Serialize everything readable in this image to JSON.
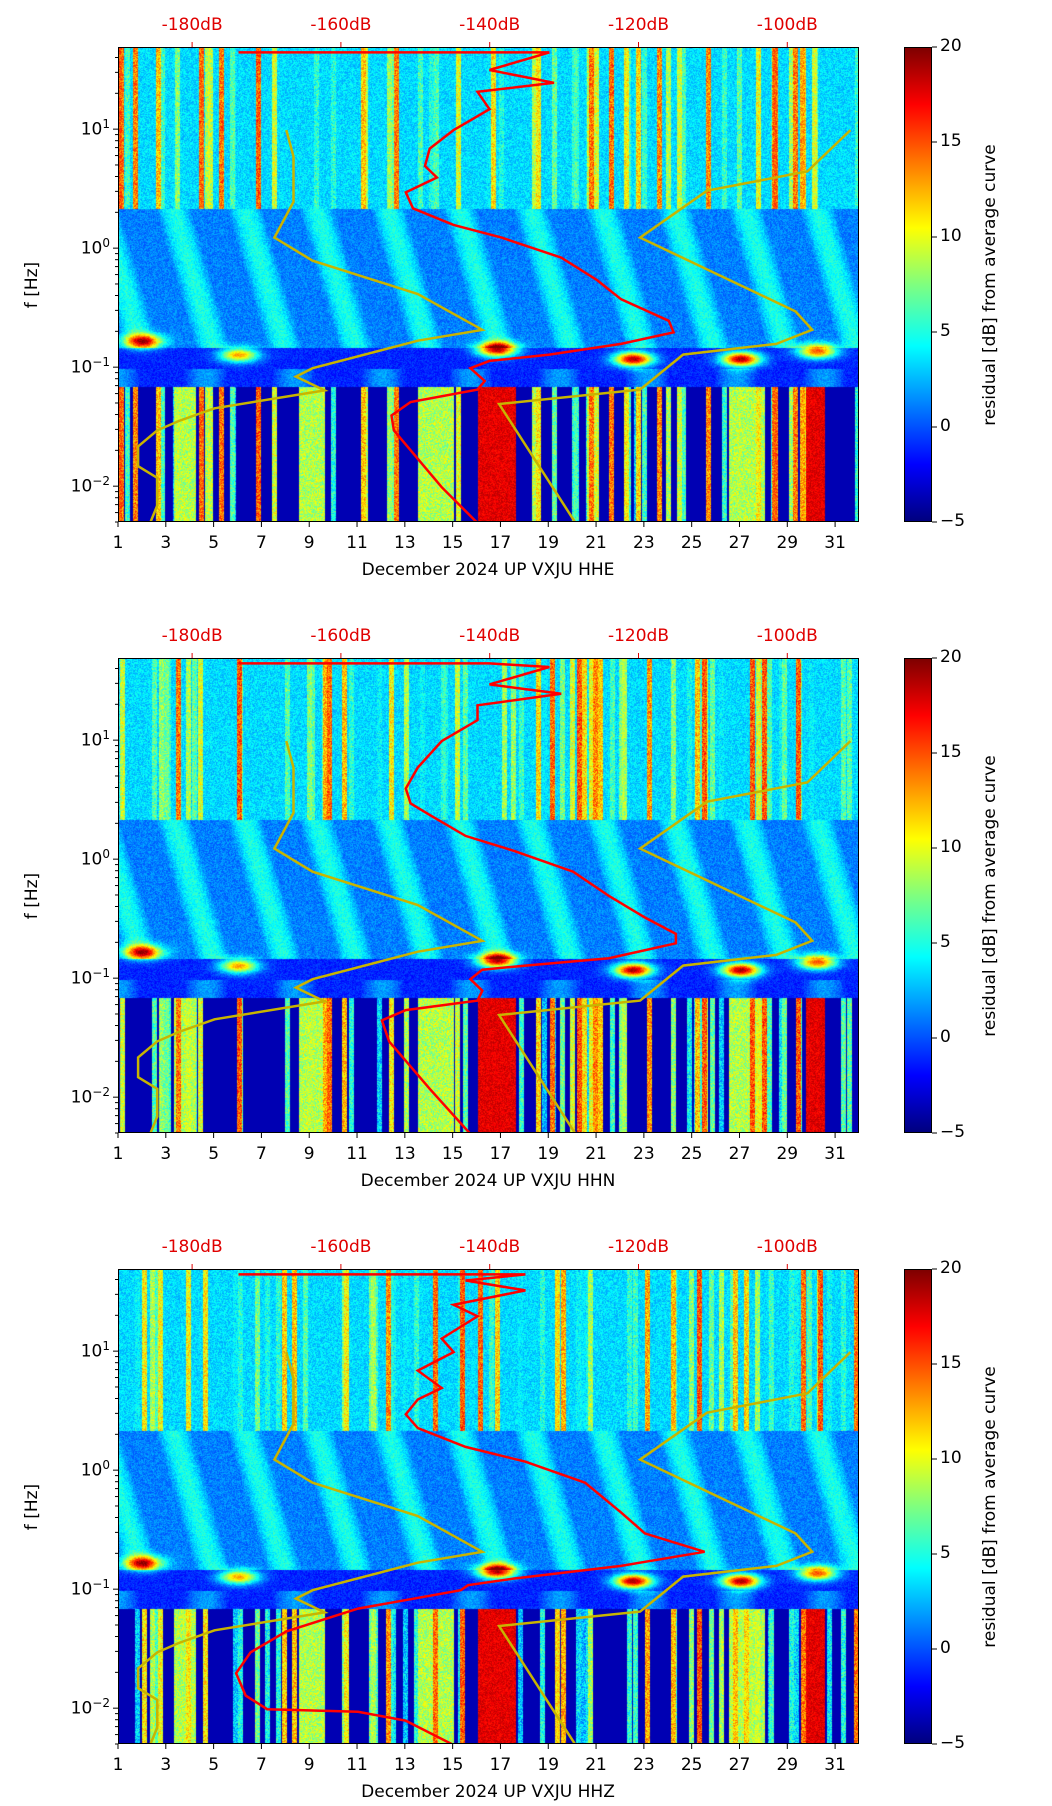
{
  "panels": [
    {
      "xlabel": "December 2024 UP VXJU  HHE",
      "channel": "HHE"
    },
    {
      "xlabel": "December 2024 UP VXJU  HHN",
      "channel": "HHN"
    },
    {
      "xlabel": "December 2024 UP VXJU  HHZ",
      "channel": "HHZ"
    }
  ],
  "axis": {
    "ylabel": "f [Hz]",
    "xticks": [
      "1",
      "3",
      "5",
      "7",
      "9",
      "11",
      "13",
      "15",
      "17",
      "19",
      "21",
      "23",
      "25",
      "27",
      "29",
      "31"
    ],
    "ytick_base": "10",
    "yticks": [
      {
        "exp": "−2",
        "value": 0.01
      },
      {
        "exp": "−1",
        "value": 0.1
      },
      {
        "exp": "0",
        "value": 1
      },
      {
        "exp": "1",
        "value": 10
      }
    ],
    "db_ticks": [
      "-180dB",
      "-160dB",
      "-140dB",
      "-120dB",
      "-100dB"
    ],
    "colorbar_label": "residual [dB] from average curve",
    "colorbar_ticks": [
      "20",
      "15",
      "10",
      "5",
      "0",
      "−5"
    ]
  },
  "chart_data": [
    {
      "type": "heatmap",
      "title": "December 2024 UP VXJU  HHE",
      "xlim": [
        1,
        32
      ],
      "ylim": [
        0.005,
        49
      ],
      "yscale": "log",
      "clim": [
        -5,
        20
      ],
      "top_axis_db": [
        -180,
        -160,
        -140,
        -120,
        -100
      ],
      "yellow_1": [
        [
          8,
          10
        ],
        [
          8.3,
          6
        ],
        [
          8.3,
          2.5
        ],
        [
          7.5,
          1.25
        ],
        [
          9.1,
          0.8
        ],
        [
          13.5,
          0.42
        ],
        [
          16.2,
          0.21
        ],
        [
          13.5,
          0.17
        ],
        [
          9.1,
          0.1
        ],
        [
          8.4,
          0.085
        ],
        [
          9.6,
          0.065
        ],
        [
          5,
          0.046
        ],
        [
          3.5,
          0.036
        ],
        [
          2.6,
          0.03
        ],
        [
          1.8,
          0.022
        ],
        [
          1.8,
          0.015
        ],
        [
          2.6,
          0.012
        ],
        [
          2.6,
          0.007
        ],
        [
          2.3,
          0.005
        ]
      ],
      "yellow_2": [
        [
          31.6,
          10
        ],
        [
          29.8,
          4.5
        ],
        [
          25.6,
          3.1
        ],
        [
          22.8,
          1.25
        ],
        [
          29.3,
          0.3
        ],
        [
          30,
          0.21
        ],
        [
          28.5,
          0.16
        ],
        [
          24.6,
          0.13
        ],
        [
          22.8,
          0.066
        ],
        [
          16.9,
          0.05
        ],
        [
          20.1,
          0.005
        ]
      ],
      "red_psd": [
        [
          6,
          45
        ],
        [
          19,
          45
        ],
        [
          16.5,
          32
        ],
        [
          19.2,
          25
        ],
        [
          16,
          21
        ],
        [
          16.5,
          15
        ],
        [
          15,
          10
        ],
        [
          14,
          7
        ],
        [
          13.8,
          5
        ],
        [
          14.3,
          4
        ],
        [
          13,
          3
        ],
        [
          13.3,
          2.2
        ],
        [
          15,
          1.6
        ],
        [
          17,
          1.25
        ],
        [
          19.5,
          0.85
        ],
        [
          21,
          0.55
        ],
        [
          22,
          0.38
        ],
        [
          24,
          0.25
        ],
        [
          24.2,
          0.2
        ],
        [
          22,
          0.16
        ],
        [
          19,
          0.13
        ],
        [
          16.5,
          0.115
        ],
        [
          15.7,
          0.1
        ],
        [
          16.3,
          0.078
        ],
        [
          16,
          0.066
        ],
        [
          13.2,
          0.052
        ],
        [
          12.4,
          0.04
        ],
        [
          12.5,
          0.03
        ],
        [
          14.5,
          0.01
        ],
        [
          16,
          0.005
        ]
      ]
    },
    {
      "type": "heatmap",
      "title": "December 2024 UP VXJU  HHN",
      "xlim": [
        1,
        32
      ],
      "ylim": [
        0.005,
        49
      ],
      "yscale": "log",
      "clim": [
        -5,
        20
      ],
      "top_axis_db": [
        -180,
        -160,
        -140,
        -120,
        -100
      ],
      "yellow_1": [
        [
          8,
          10
        ],
        [
          8.3,
          6
        ],
        [
          8.3,
          2.5
        ],
        [
          7.5,
          1.25
        ],
        [
          9.1,
          0.8
        ],
        [
          13.5,
          0.42
        ],
        [
          16.2,
          0.21
        ],
        [
          13.5,
          0.17
        ],
        [
          9.1,
          0.1
        ],
        [
          8.4,
          0.085
        ],
        [
          9.6,
          0.065
        ],
        [
          5,
          0.046
        ],
        [
          3.5,
          0.036
        ],
        [
          2.6,
          0.03
        ],
        [
          1.8,
          0.022
        ],
        [
          1.8,
          0.015
        ],
        [
          2.6,
          0.012
        ],
        [
          2.6,
          0.007
        ],
        [
          2.3,
          0.005
        ]
      ],
      "yellow_2": [
        [
          31.6,
          10
        ],
        [
          29.8,
          4.5
        ],
        [
          25.6,
          3.1
        ],
        [
          22.8,
          1.25
        ],
        [
          29.3,
          0.3
        ],
        [
          30,
          0.21
        ],
        [
          28.5,
          0.16
        ],
        [
          24.6,
          0.13
        ],
        [
          22.8,
          0.066
        ],
        [
          16.9,
          0.05
        ],
        [
          20.1,
          0.005
        ]
      ],
      "red_psd": [
        [
          6,
          45
        ],
        [
          16.5,
          45
        ],
        [
          19,
          42
        ],
        [
          16.5,
          30
        ],
        [
          19.5,
          25
        ],
        [
          16,
          20
        ],
        [
          16,
          15
        ],
        [
          14.5,
          10
        ],
        [
          13.5,
          6
        ],
        [
          13,
          4
        ],
        [
          13.2,
          3
        ],
        [
          14,
          2.4
        ],
        [
          15.5,
          1.6
        ],
        [
          17.5,
          1.2
        ],
        [
          20,
          0.8
        ],
        [
          21.5,
          0.5
        ],
        [
          23,
          0.33
        ],
        [
          24.3,
          0.24
        ],
        [
          24.3,
          0.2
        ],
        [
          21.5,
          0.15
        ],
        [
          18,
          0.13
        ],
        [
          16.2,
          0.12
        ],
        [
          15.7,
          0.1
        ],
        [
          16.2,
          0.08
        ],
        [
          16,
          0.066
        ],
        [
          13,
          0.055
        ],
        [
          12,
          0.045
        ],
        [
          12.3,
          0.03
        ],
        [
          14,
          0.012
        ],
        [
          15.7,
          0.005
        ]
      ]
    },
    {
      "type": "heatmap",
      "title": "December 2024 UP VXJU  HHZ",
      "xlim": [
        1,
        32
      ],
      "ylim": [
        0.005,
        49
      ],
      "yscale": "log",
      "clim": [
        -5,
        20
      ],
      "top_axis_db": [
        -180,
        -160,
        -140,
        -120,
        -100
      ],
      "yellow_1": [
        [
          8,
          10
        ],
        [
          8.3,
          6
        ],
        [
          8.3,
          2.5
        ],
        [
          7.5,
          1.25
        ],
        [
          9.1,
          0.8
        ],
        [
          13.5,
          0.42
        ],
        [
          16.2,
          0.21
        ],
        [
          13.5,
          0.17
        ],
        [
          9.1,
          0.1
        ],
        [
          8.4,
          0.085
        ],
        [
          9.6,
          0.065
        ],
        [
          5,
          0.046
        ],
        [
          3.5,
          0.036
        ],
        [
          2.6,
          0.03
        ],
        [
          1.8,
          0.022
        ],
        [
          1.8,
          0.015
        ],
        [
          2.6,
          0.012
        ],
        [
          2.6,
          0.007
        ],
        [
          2.3,
          0.005
        ]
      ],
      "yellow_2": [
        [
          31.6,
          10
        ],
        [
          29.8,
          4.5
        ],
        [
          25.6,
          3.1
        ],
        [
          22.8,
          1.25
        ],
        [
          29.3,
          0.3
        ],
        [
          30,
          0.21
        ],
        [
          28.5,
          0.16
        ],
        [
          24.6,
          0.13
        ],
        [
          22.8,
          0.066
        ],
        [
          16.9,
          0.05
        ],
        [
          20.1,
          0.005
        ]
      ],
      "red_psd": [
        [
          6,
          45
        ],
        [
          18,
          45
        ],
        [
          15.5,
          40
        ],
        [
          18,
          33
        ],
        [
          15,
          25
        ],
        [
          16,
          20
        ],
        [
          14.5,
          13
        ],
        [
          15,
          10
        ],
        [
          13.5,
          7
        ],
        [
          14.5,
          5
        ],
        [
          13.5,
          4
        ],
        [
          13,
          3
        ],
        [
          13.5,
          2.3
        ],
        [
          15.5,
          1.6
        ],
        [
          18,
          1.2
        ],
        [
          20.5,
          0.8
        ],
        [
          22,
          0.45
        ],
        [
          23,
          0.3
        ],
        [
          25.5,
          0.21
        ],
        [
          22,
          0.16
        ],
        [
          17.5,
          0.125
        ],
        [
          15.6,
          0.11
        ],
        [
          15.3,
          0.1
        ],
        [
          11,
          0.07
        ],
        [
          8,
          0.045
        ],
        [
          6.5,
          0.03
        ],
        [
          5.9,
          0.02
        ],
        [
          6.3,
          0.013
        ],
        [
          7.2,
          0.01
        ],
        [
          11,
          0.0095
        ],
        [
          13,
          0.008
        ],
        [
          15,
          0.005
        ]
      ]
    }
  ]
}
